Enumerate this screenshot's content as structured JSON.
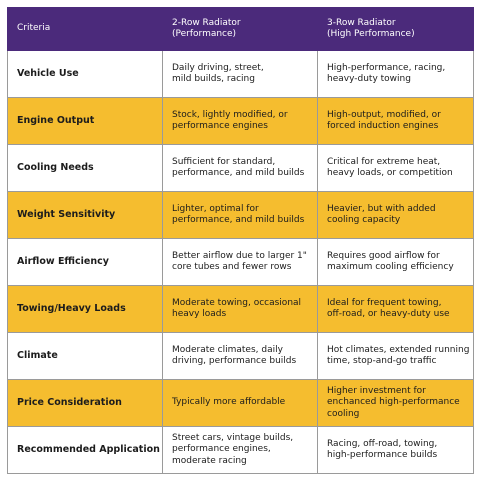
{
  "table": {
    "header": [
      [
        "Criteria"
      ],
      [
        "2-Row Radiator",
        "(Performance)"
      ],
      [
        "3-Row Radiator",
        "(High Performance)"
      ]
    ],
    "rows": [
      [
        [
          "Vehicle Use"
        ],
        [
          "Daily driving, street,",
          "mild builds, racing"
        ],
        [
          "High-performance, racing,",
          "heavy-duty towing"
        ]
      ],
      [
        [
          "Engine Output"
        ],
        [
          "Stock, lightly modified, or",
          "performance engines"
        ],
        [
          "High-output, modified, or",
          "forced induction engines"
        ]
      ],
      [
        [
          "Cooling Needs"
        ],
        [
          "Sufficient for standard,",
          "performance, and mild builds"
        ],
        [
          "Critical for extreme heat,",
          "heavy loads, or competition"
        ]
      ],
      [
        [
          "Weight Sensitivity"
        ],
        [
          "Lighter, optimal for",
          "performance, and mild builds"
        ],
        [
          "Heavier, but with added",
          "cooling capacity"
        ]
      ],
      [
        [
          "Airflow Efficiency"
        ],
        [
          "Better airflow due to larger 1\"",
          "core tubes and fewer rows"
        ],
        [
          "Requires good airflow for",
          "maximum cooling efficiency"
        ]
      ],
      [
        [
          "Towing/Heavy Loads"
        ],
        [
          "Moderate towing, occasional",
          "heavy loads"
        ],
        [
          "Ideal for frequent towing,",
          "off-road, or heavy-duty use"
        ]
      ],
      [
        [
          "Climate"
        ],
        [
          "Moderate climates, daily",
          "driving, performance builds"
        ],
        [
          "Hot climates, extended running",
          "time, stop-and-go traffic"
        ]
      ],
      [
        [
          "Price Consideration"
        ],
        [
          "Typically more affordable"
        ],
        [
          "Higher investment for",
          "enchanced high-performance",
          "cooling"
        ]
      ],
      [
        [
          "Recommended Application"
        ],
        [
          "Street cars, vintage builds,",
          "performance engines,",
          "moderate racing"
        ],
        [
          "Racing, off-road, towing,",
          "high-performance builds"
        ]
      ]
    ]
  }
}
